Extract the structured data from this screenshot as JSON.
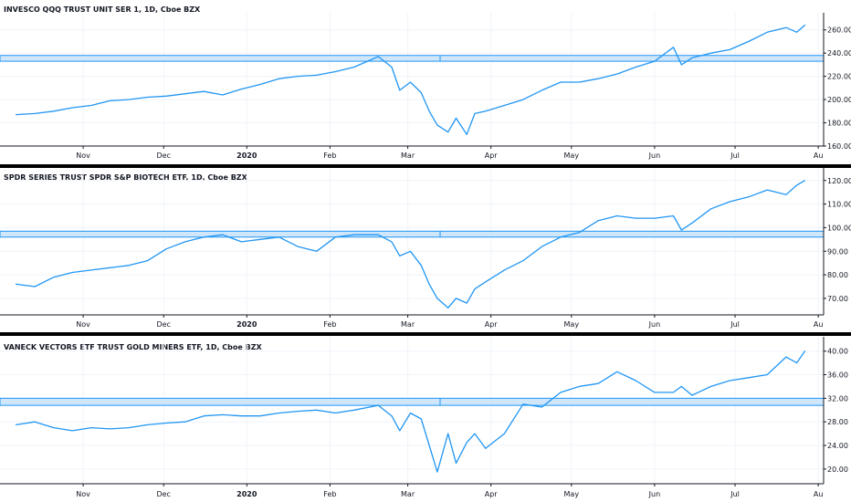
{
  "colors": {
    "line": "#2196f3",
    "zone_fill": "#cfe6fb",
    "zone_stroke": "#2196f3",
    "separator": "#000000",
    "text": "#131722"
  },
  "months": [
    "Nov",
    "Dec",
    "2020",
    "Feb",
    "Mar",
    "Apr",
    "May",
    "Jun",
    "Jul",
    "Au"
  ],
  "chart_data": [
    {
      "type": "line",
      "title": "INVESCO QQQ TRUST UNIT SER 1, 1D, Cboe BZX",
      "x": [
        "2019-10-07",
        "2019-10-14",
        "2019-10-21",
        "2019-10-28",
        "2019-11-04",
        "2019-11-11",
        "2019-11-18",
        "2019-11-25",
        "2019-12-02",
        "2019-12-09",
        "2019-12-16",
        "2019-12-23",
        "2019-12-30",
        "2020-01-06",
        "2020-01-13",
        "2020-01-20",
        "2020-01-27",
        "2020-02-03",
        "2020-02-10",
        "2020-02-19",
        "2020-02-24",
        "2020-02-27",
        "2020-03-02",
        "2020-03-06",
        "2020-03-09",
        "2020-03-12",
        "2020-03-16",
        "2020-03-19",
        "2020-03-23",
        "2020-03-26",
        "2020-03-30",
        "2020-04-06",
        "2020-04-13",
        "2020-04-20",
        "2020-04-27",
        "2020-05-04",
        "2020-05-11",
        "2020-05-18",
        "2020-05-25",
        "2020-06-01",
        "2020-06-08",
        "2020-06-11",
        "2020-06-15",
        "2020-06-22",
        "2020-06-29",
        "2020-07-06",
        "2020-07-13",
        "2020-07-20",
        "2020-07-24",
        "2020-07-27"
      ],
      "y": [
        187,
        188,
        190,
        193,
        195,
        199,
        200,
        202,
        203,
        205,
        207,
        204,
        209,
        213,
        218,
        220,
        221,
        224,
        228,
        237,
        228,
        208,
        215,
        206,
        190,
        178,
        172,
        184,
        170,
        188,
        190,
        195,
        200,
        208,
        215,
        215,
        218,
        222,
        228,
        233,
        245,
        230,
        236,
        240,
        243,
        250,
        258,
        262,
        258,
        264
      ],
      "ylim": [
        160,
        270
      ],
      "yticks": [
        160,
        180,
        200,
        220,
        240,
        260
      ],
      "ytick_labels": [
        "160.00",
        "180.00",
        "200.00",
        "220.00",
        "240.00",
        "260.00"
      ],
      "zone": [
        233,
        238
      ]
    },
    {
      "type": "line",
      "title": "SPDR SERIES TRUST SPDR S&P BIOTECH ETF, 1D, Cboe BZX",
      "x": [
        "2019-10-07",
        "2019-10-14",
        "2019-10-21",
        "2019-10-28",
        "2019-11-04",
        "2019-11-11",
        "2019-11-18",
        "2019-11-25",
        "2019-12-02",
        "2019-12-09",
        "2019-12-16",
        "2019-12-23",
        "2019-12-30",
        "2020-01-06",
        "2020-01-13",
        "2020-01-20",
        "2020-01-27",
        "2020-02-03",
        "2020-02-10",
        "2020-02-19",
        "2020-02-24",
        "2020-02-27",
        "2020-03-02",
        "2020-03-06",
        "2020-03-09",
        "2020-03-12",
        "2020-03-16",
        "2020-03-19",
        "2020-03-23",
        "2020-03-26",
        "2020-03-30",
        "2020-04-06",
        "2020-04-13",
        "2020-04-20",
        "2020-04-27",
        "2020-05-04",
        "2020-05-11",
        "2020-05-18",
        "2020-05-25",
        "2020-06-01",
        "2020-06-08",
        "2020-06-11",
        "2020-06-15",
        "2020-06-22",
        "2020-06-29",
        "2020-07-06",
        "2020-07-13",
        "2020-07-20",
        "2020-07-24",
        "2020-07-27"
      ],
      "y": [
        76,
        75,
        79,
        81,
        82,
        83,
        84,
        86,
        91,
        94,
        96,
        97,
        94,
        95,
        96,
        92,
        90,
        96,
        97,
        97,
        94,
        88,
        90,
        84,
        76,
        70,
        66,
        70,
        68,
        74,
        77,
        82,
        86,
        92,
        96,
        98,
        103,
        105,
        104,
        104,
        105,
        99,
        102,
        108,
        111,
        113,
        116,
        114,
        118,
        120
      ],
      "ylim": [
        63,
        123
      ],
      "yticks": [
        70,
        80,
        90,
        100,
        110,
        120
      ],
      "ytick_labels": [
        "70.00",
        "80.00",
        "90.00",
        "100.00",
        "110.00",
        "120.00"
      ],
      "zone": [
        96,
        98.5
      ]
    },
    {
      "type": "line",
      "title": "VANECK VECTORS ETF TRUST GOLD MINERS ETF, 1D, Cboe BZX",
      "x": [
        "2019-10-07",
        "2019-10-14",
        "2019-10-21",
        "2019-10-28",
        "2019-11-04",
        "2019-11-11",
        "2019-11-18",
        "2019-11-25",
        "2019-12-02",
        "2019-12-09",
        "2019-12-16",
        "2019-12-23",
        "2019-12-30",
        "2020-01-06",
        "2020-01-13",
        "2020-01-20",
        "2020-01-27",
        "2020-02-03",
        "2020-02-10",
        "2020-02-19",
        "2020-02-24",
        "2020-02-27",
        "2020-03-02",
        "2020-03-06",
        "2020-03-09",
        "2020-03-12",
        "2020-03-16",
        "2020-03-19",
        "2020-03-23",
        "2020-03-26",
        "2020-03-30",
        "2020-04-06",
        "2020-04-13",
        "2020-04-20",
        "2020-04-27",
        "2020-05-04",
        "2020-05-11",
        "2020-05-18",
        "2020-05-25",
        "2020-06-01",
        "2020-06-08",
        "2020-06-11",
        "2020-06-15",
        "2020-06-22",
        "2020-06-29",
        "2020-07-06",
        "2020-07-13",
        "2020-07-20",
        "2020-07-24",
        "2020-07-27"
      ],
      "y": [
        27.5,
        28,
        27,
        26.5,
        27,
        26.8,
        27,
        27.5,
        27.8,
        28,
        29,
        29.2,
        29,
        29,
        29.5,
        29.8,
        30,
        29.5,
        30,
        30.8,
        29,
        26.5,
        29.5,
        28.5,
        24,
        19.5,
        26,
        21,
        24.5,
        26,
        23.5,
        26,
        31,
        30.5,
        33,
        34,
        34.5,
        36.5,
        35,
        33,
        33,
        34,
        32.5,
        34,
        35,
        35.5,
        36,
        39,
        38,
        40
      ],
      "ylim": [
        17.5,
        41.5
      ],
      "yticks": [
        20,
        24,
        28,
        32,
        36,
        40
      ],
      "ytick_labels": [
        "20.00",
        "24.00",
        "28.00",
        "32.00",
        "36.00",
        "40.00"
      ],
      "zone": [
        30.8,
        32
      ]
    }
  ]
}
